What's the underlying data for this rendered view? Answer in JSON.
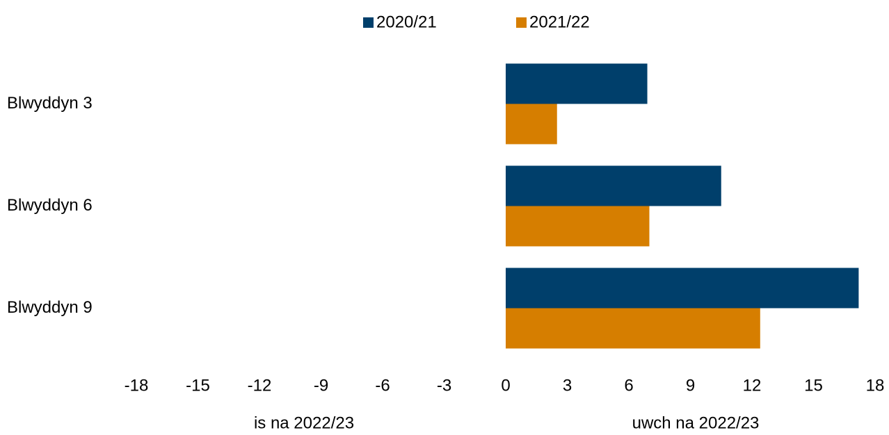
{
  "chart_data": {
    "type": "bar",
    "orientation": "horizontal",
    "categories": [
      "Blwyddyn 3",
      "Blwyddyn 6",
      "Blwyddyn 9"
    ],
    "series": [
      {
        "name": "2020/21",
        "color": "#003f6b",
        "values": [
          6.9,
          10.5,
          17.2
        ]
      },
      {
        "name": "2021/22",
        "color": "#d67e00",
        "values": [
          2.5,
          7.0,
          12.4
        ]
      }
    ],
    "xlim": [
      -18,
      18
    ],
    "xticks": [
      -18,
      -15,
      -12,
      -9,
      -6,
      -3,
      0,
      3,
      6,
      9,
      12,
      15,
      18
    ],
    "grid": false,
    "legend": "top",
    "annotations": [
      "is na 2022/23",
      "uwch na 2022/23"
    ]
  }
}
